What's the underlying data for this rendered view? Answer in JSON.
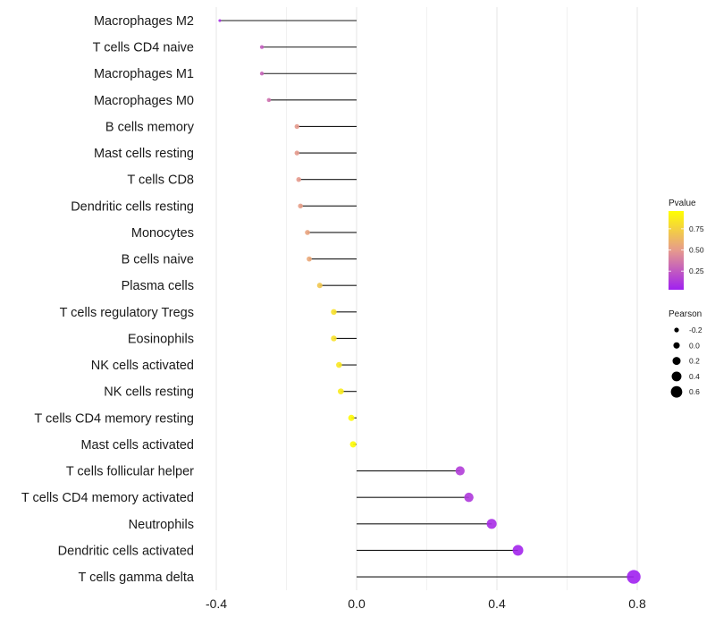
{
  "chart_data": {
    "type": "lollipop",
    "title": "",
    "xlabel": "",
    "ylabel": "",
    "xlim": [
      -0.42,
      0.81
    ],
    "x_ticks": [
      -0.4,
      0.0,
      0.4,
      0.8
    ],
    "x_tick_labels": [
      "-0.4",
      "0.0",
      "0.4",
      "0.8"
    ],
    "categories": [
      "Macrophages M2",
      "T cells CD4 naive",
      "Macrophages M1",
      "Macrophages M0",
      "B cells memory",
      "Mast cells resting",
      "T cells CD8",
      "Dendritic cells resting",
      "Monocytes",
      "B cells naive",
      "Plasma cells",
      "T cells regulatory  Tregs ",
      "Eosinophils",
      "NK cells activated",
      "NK cells resting",
      "T cells CD4 memory resting",
      "Mast cells activated",
      "T cells follicular helper",
      "T cells CD4 memory activated",
      "Neutrophils",
      "Dendritic cells activated",
      "T cells gamma delta"
    ],
    "pearson": [
      -0.39,
      -0.27,
      -0.27,
      -0.25,
      -0.17,
      -0.17,
      -0.165,
      -0.16,
      -0.14,
      -0.135,
      -0.105,
      -0.065,
      -0.065,
      -0.05,
      -0.045,
      -0.015,
      -0.01,
      0.295,
      0.32,
      0.385,
      0.46,
      0.79
    ],
    "pvalue": [
      0.05,
      0.25,
      0.28,
      0.33,
      0.5,
      0.5,
      0.5,
      0.52,
      0.55,
      0.57,
      0.72,
      0.85,
      0.85,
      0.88,
      0.9,
      0.97,
      0.98,
      0.12,
      0.1,
      0.05,
      0.02,
      0.0
    ],
    "legend": {
      "color": {
        "title": "Pvalue",
        "ticks": [
          0.25,
          0.5,
          0.75
        ],
        "tick_labels": [
          "0.25",
          "0.50",
          "0.75"
        ],
        "low_color": "#a020f0",
        "mid_color": "#e69a8d",
        "high_color": "#ffff00"
      },
      "size": {
        "title": "Pearson",
        "values": [
          -0.2,
          0.0,
          0.2,
          0.4,
          0.6
        ],
        "labels": [
          "-0.2",
          "0.0",
          "0.2",
          "0.4",
          "0.6"
        ]
      }
    }
  }
}
